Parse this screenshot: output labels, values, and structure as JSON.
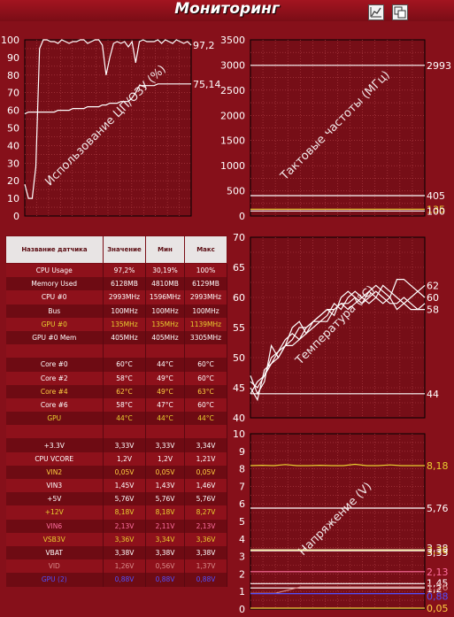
{
  "window": {
    "title": "Мониторинг"
  },
  "colors": {
    "background": "#86101a",
    "plot": "#760e17",
    "grid": "#b4434a",
    "yellow": "#e8d030",
    "pink": "#ff6fa0",
    "blue": "#5050ff",
    "dim": "#d88a8a"
  },
  "table": {
    "headers": [
      "Название датчика",
      "Значение",
      "Мин",
      "Макс"
    ],
    "rows": [
      {
        "name": "CPU Usage",
        "value": "97,2%",
        "min": "30,19%",
        "max": "100%",
        "color": "#ffffff"
      },
      {
        "name": "Memory Used",
        "value": "6128MB",
        "min": "4810MB",
        "max": "6129MB",
        "color": "#ffffff"
      },
      {
        "name": "CPU #0",
        "value": "2993MHz",
        "min": "1596MHz",
        "max": "2993MHz",
        "color": "#ffffff"
      },
      {
        "name": "Bus",
        "value": "100MHz",
        "min": "100MHz",
        "max": "100MHz",
        "color": "#ffffff"
      },
      {
        "name": "GPU #0",
        "value": "135MHz",
        "min": "135MHz",
        "max": "1139MHz",
        "color": "#e8d030"
      },
      {
        "name": "GPU #0 Mem",
        "value": "405MHz",
        "min": "405MHz",
        "max": "3305MHz",
        "color": "#ffffff"
      },
      {
        "name": "",
        "value": "",
        "min": "",
        "max": "",
        "color": "#ffffff"
      },
      {
        "name": "Core #0",
        "value": "60°C",
        "min": "44°C",
        "max": "60°C",
        "color": "#ffffff"
      },
      {
        "name": "Core #2",
        "value": "58°C",
        "min": "49°C",
        "max": "60°C",
        "color": "#ffffff"
      },
      {
        "name": "Core #4",
        "value": "62°C",
        "min": "49°C",
        "max": "63°C",
        "color": "#ffd040"
      },
      {
        "name": "Core #6",
        "value": "58°C",
        "min": "47°C",
        "max": "60°C",
        "color": "#ffffff"
      },
      {
        "name": "GPU",
        "value": "44°C",
        "min": "44°C",
        "max": "44°C",
        "color": "#e8d030"
      },
      {
        "name": "",
        "value": "",
        "min": "",
        "max": "",
        "color": "#ffffff"
      },
      {
        "name": "+3.3V",
        "value": "3,33V",
        "min": "3,33V",
        "max": "3,34V",
        "color": "#ffffff"
      },
      {
        "name": "CPU VCORE",
        "value": "1,2V",
        "min": "1,2V",
        "max": "1,21V",
        "color": "#ffffff"
      },
      {
        "name": "VIN2",
        "value": "0,05V",
        "min": "0,05V",
        "max": "0,05V",
        "color": "#ffd040"
      },
      {
        "name": "VIN3",
        "value": "1,45V",
        "min": "1,43V",
        "max": "1,46V",
        "color": "#ffffff"
      },
      {
        "name": "+5V",
        "value": "5,76V",
        "min": "5,76V",
        "max": "5,76V",
        "color": "#ffffff"
      },
      {
        "name": "+12V",
        "value": "8,18V",
        "min": "8,18V",
        "max": "8,27V",
        "color": "#e8d030"
      },
      {
        "name": "VIN6",
        "value": "2,13V",
        "min": "2,11V",
        "max": "2,13V",
        "color": "#ff6fa0"
      },
      {
        "name": "VSB3V",
        "value": "3,36V",
        "min": "3,34V",
        "max": "3,36V",
        "color": "#e8d030"
      },
      {
        "name": "VBAT",
        "value": "3,38V",
        "min": "3,38V",
        "max": "3,38V",
        "color": "#ffffff"
      },
      {
        "name": "VID",
        "value": "1,26V",
        "min": "0,56V",
        "max": "1,37V",
        "color": "#d88a8a"
      },
      {
        "name": "GPU (2)",
        "value": "0,88V",
        "min": "0,88V",
        "max": "0,88V",
        "color": "#5050ff"
      }
    ]
  },
  "chart_data": [
    {
      "type": "line",
      "ylabel": "Использование ЦП/ОЗУ (%)",
      "ylim": [
        0,
        100
      ],
      "yticks": [
        "0",
        "5",
        "10",
        "15",
        "20",
        "25",
        "30",
        "35",
        "40",
        "45",
        "50",
        "55",
        "60",
        "65",
        "70",
        "75",
        "80",
        "85",
        "90",
        "95",
        "100"
      ],
      "tick_labels": [
        "0",
        "10",
        "20",
        "30",
        "40",
        "50",
        "60",
        "70",
        "80",
        "90",
        "100"
      ],
      "series": [
        {
          "color": "#ffffff",
          "end_label": "97,2",
          "values": [
            18,
            10,
            10,
            28,
            95,
            100,
            100,
            99,
            99,
            98,
            100,
            99,
            98,
            99,
            99,
            100,
            100,
            98,
            99,
            100,
            100,
            97,
            80,
            90,
            98,
            99,
            98,
            99,
            96,
            99,
            87,
            99,
            100,
            99,
            99,
            99,
            100,
            98,
            100,
            99,
            98,
            100,
            99,
            98,
            99,
            97
          ]
        },
        {
          "color": "#ffffff",
          "end_label": "75,14",
          "values": [
            58,
            59,
            59,
            59,
            59,
            59,
            59,
            59,
            59,
            60,
            60,
            60,
            60,
            61,
            61,
            61,
            61,
            62,
            62,
            62,
            62,
            63,
            63,
            64,
            64,
            64,
            65,
            65,
            65,
            67,
            70,
            74,
            74,
            74,
            74,
            74,
            75,
            75,
            75,
            75,
            75,
            75,
            75,
            75,
            75,
            75
          ]
        }
      ]
    },
    {
      "type": "line",
      "ylabel": "Тактовые частоты (МГц)",
      "ylim": [
        0,
        3500
      ],
      "tick_labels": [
        "0",
        "500",
        "1000",
        "1500",
        "2000",
        "2500",
        "3000",
        "3500"
      ],
      "series": [
        {
          "color": "#ffffff",
          "end_label": "2993",
          "values": [
            2993,
            2993
          ]
        },
        {
          "color": "#ffffff",
          "end_label": "405",
          "values": [
            405,
            405
          ]
        },
        {
          "color": "#e8d030",
          "end_label": "135",
          "values": [
            135,
            135
          ]
        },
        {
          "color": "#ffffff",
          "end_label": "100",
          "values": [
            100,
            100
          ]
        }
      ]
    },
    {
      "type": "line",
      "ylabel": "Температура (°C)",
      "ylim": [
        40,
        70
      ],
      "tick_labels": [
        "40",
        "45",
        "50",
        "55",
        "60",
        "65",
        "70"
      ],
      "series": [
        {
          "color": "#ffffff",
          "end_label": "62",
          "values": [
            47,
            44,
            46,
            52,
            50,
            52,
            55,
            56,
            54,
            56,
            57,
            58,
            57,
            60,
            61,
            60,
            59,
            61,
            62,
            61,
            60,
            63,
            63,
            62,
            61,
            62
          ]
        },
        {
          "color": "#ffffff",
          "end_label": "60",
          "values": [
            45,
            43,
            48,
            49,
            51,
            53,
            54,
            53,
            55,
            56,
            56,
            57,
            59,
            58,
            60,
            61,
            60,
            61,
            60,
            62,
            61,
            60,
            59,
            60,
            61,
            60
          ]
        },
        {
          "color": "#ffffff",
          "end_label": "58",
          "values": [
            44,
            46,
            47,
            49,
            50,
            52,
            52,
            53,
            54,
            55,
            56,
            56,
            58,
            59,
            58,
            59,
            60,
            59,
            60,
            59,
            60,
            58,
            59,
            58,
            58,
            58
          ]
        },
        {
          "color": "#ffffff",
          "end_label": "",
          "values": [
            46,
            45,
            47,
            50,
            51,
            52,
            53,
            55,
            55,
            56,
            57,
            58,
            58,
            59,
            59,
            60,
            59,
            60,
            61,
            60,
            59,
            59,
            60,
            59,
            58,
            59
          ]
        },
        {
          "color": "#ffffff",
          "end_label": "44",
          "values": [
            44,
            44
          ]
        }
      ]
    },
    {
      "type": "line",
      "ylabel": "Напряжение (V)",
      "ylim": [
        0,
        10
      ],
      "tick_labels": [
        "0",
        "1",
        "2",
        "3",
        "4",
        "5",
        "6",
        "7",
        "8",
        "9",
        "10"
      ],
      "series": [
        {
          "color": "#e8d030",
          "end_label": "8,18",
          "values": [
            8.18,
            8.2,
            8.18,
            8.24,
            8.18,
            8.18,
            8.2,
            8.18,
            8.18,
            8.26,
            8.18,
            8.18,
            8.22,
            8.18,
            8.18,
            8.18
          ]
        },
        {
          "color": "#ffffff",
          "end_label": "5,76",
          "values": [
            5.76,
            5.76
          ]
        },
        {
          "color": "#ffffff",
          "end_label": "3,38",
          "values": [
            3.38,
            3.38
          ]
        },
        {
          "color": "#e8d030",
          "end_label": "3,36",
          "values": [
            3.36,
            3.36
          ]
        },
        {
          "color": "#ffffff",
          "end_label": "3,33",
          "values": [
            3.33,
            3.33
          ]
        },
        {
          "color": "#ff6fa0",
          "end_label": "2,13",
          "values": [
            2.13,
            2.13
          ]
        },
        {
          "color": "#ffffff",
          "end_label": "1,45",
          "values": [
            1.45,
            1.45
          ]
        },
        {
          "color": "#ffffff",
          "end_label": "1,2",
          "values": [
            1.2,
            1.2
          ]
        },
        {
          "color": "#d88a8a",
          "end_label": "1,26",
          "values": [
            0.9,
            0.9,
            1.26,
            1.26,
            1.26,
            1.26,
            1.26,
            1.26
          ]
        },
        {
          "color": "#5050ff",
          "end_label": "0,88",
          "values": [
            0.88,
            0.88
          ]
        },
        {
          "color": "#ffd040",
          "end_label": "0,05",
          "values": [
            0.05,
            0.05
          ]
        }
      ]
    }
  ]
}
